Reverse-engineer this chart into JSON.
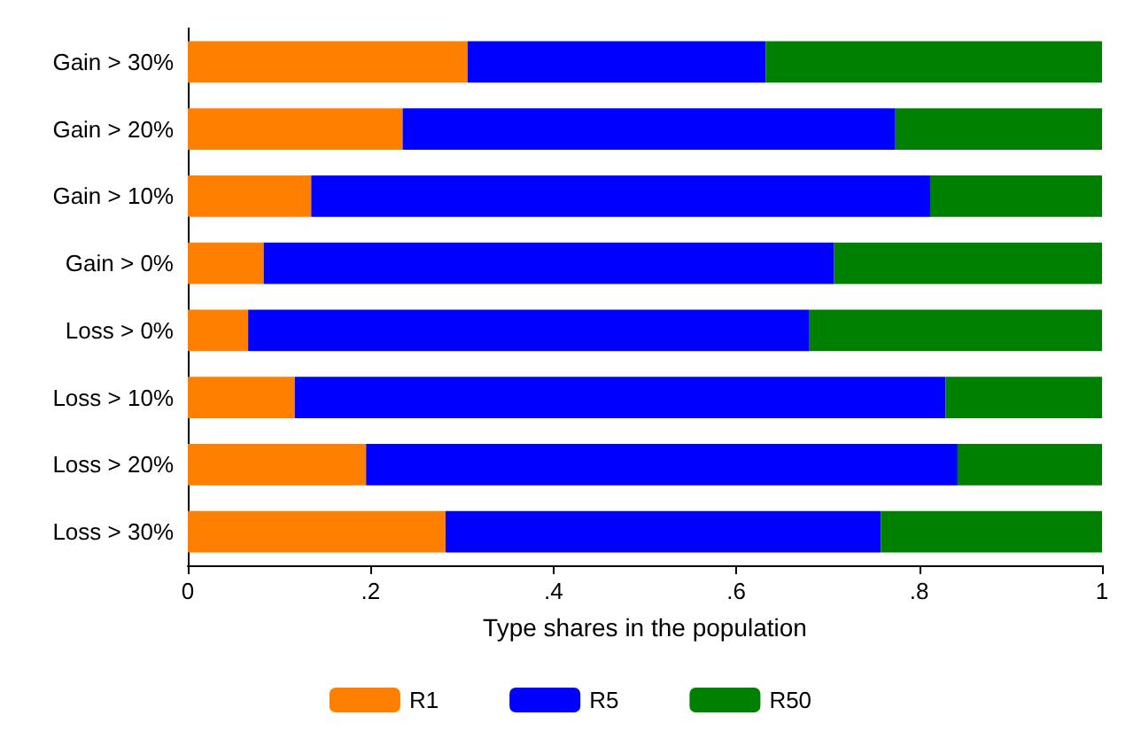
{
  "chart_data": {
    "type": "bar",
    "orientation": "horizontal",
    "stacked": true,
    "xlabel": "Type shares in the population",
    "categories": [
      "Gain > 30%",
      "Gain > 20%",
      "Gain > 10%",
      "Gain > 0%",
      "Loss > 0%",
      "Loss > 10%",
      "Loss > 20%",
      "Loss > 30%"
    ],
    "series": [
      {
        "name": "R1",
        "color": "#ff7f00",
        "values": [
          0.306,
          0.235,
          0.135,
          0.083,
          0.066,
          0.117,
          0.195,
          0.282
        ]
      },
      {
        "name": "R5",
        "color": "#0000ff",
        "values": [
          0.326,
          0.539,
          0.677,
          0.624,
          0.614,
          0.712,
          0.647,
          0.476
        ]
      },
      {
        "name": "R50",
        "color": "#008000",
        "values": [
          0.368,
          0.226,
          0.188,
          0.293,
          0.32,
          0.171,
          0.158,
          0.242
        ]
      }
    ],
    "xlim": [
      0,
      1
    ],
    "xticks": [
      0,
      {
        "value": 0.2,
        "label": ".2"
      },
      {
        "value": 0.4,
        "label": ".4"
      },
      {
        "value": 0.6,
        "label": ".6"
      },
      {
        "value": 0.8,
        "label": ".8"
      },
      1
    ],
    "grid": false,
    "legend": "bottom"
  }
}
